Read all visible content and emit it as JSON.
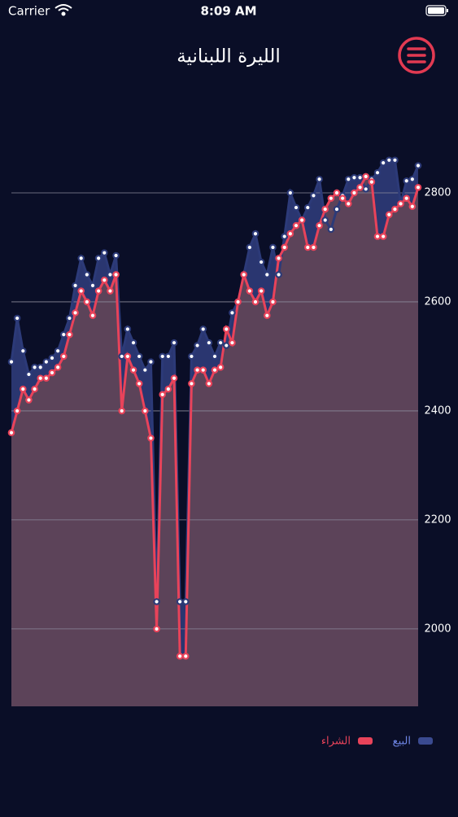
{
  "status_bar": {
    "carrier": "Carrier",
    "time": "8:09 AM"
  },
  "header": {
    "title": "الليرة اللبنانية"
  },
  "chart_data": {
    "type": "area-line",
    "ylim": [
      1858,
      2900
    ],
    "yticks": [
      2000,
      2200,
      2400,
      2600,
      2800
    ],
    "grid": true,
    "legend": "bottom-right",
    "series": [
      {
        "name": "البيع",
        "color": "#2c3a78",
        "values": [
          2490,
          2570,
          2510,
          2467,
          2480,
          2480,
          2490,
          2497,
          2510,
          2540,
          2570,
          2630,
          2680,
          2650,
          2630,
          2680,
          2690,
          2650,
          2685,
          2500,
          2550,
          2525,
          2500,
          2475,
          2490,
          2050,
          2500,
          2500,
          2525,
          2050,
          2050,
          2500,
          2520,
          2550,
          2525,
          2500,
          2525,
          2520,
          2580,
          2600,
          2650,
          2700,
          2725,
          2673,
          2650,
          2700,
          2650,
          2720,
          2800,
          2773,
          2750,
          2773,
          2795,
          2825,
          2750,
          2733,
          2770,
          2795,
          2825,
          2828,
          2828,
          2807,
          2825,
          2837,
          2855,
          2860,
          2860,
          2780,
          2822,
          2825,
          2850
        ]
      },
      {
        "name": "الشراء",
        "color": "#e8435a",
        "values": [
          2360,
          2400,
          2440,
          2420,
          2440,
          2460,
          2460,
          2470,
          2480,
          2500,
          2540,
          2580,
          2620,
          2600,
          2575,
          2620,
          2640,
          2620,
          2650,
          2400,
          2500,
          2475,
          2450,
          2400,
          2350,
          2000,
          2430,
          2440,
          2460,
          1950,
          1950,
          2450,
          2475,
          2475,
          2450,
          2475,
          2480,
          2550,
          2525,
          2600,
          2650,
          2620,
          2600,
          2620,
          2575,
          2600,
          2680,
          2700,
          2725,
          2740,
          2750,
          2700,
          2700,
          2740,
          2770,
          2790,
          2800,
          2790,
          2780,
          2800,
          2810,
          2830,
          2820,
          2720,
          2720,
          2760,
          2770,
          2780,
          2790,
          2775,
          2810
        ]
      }
    ]
  }
}
